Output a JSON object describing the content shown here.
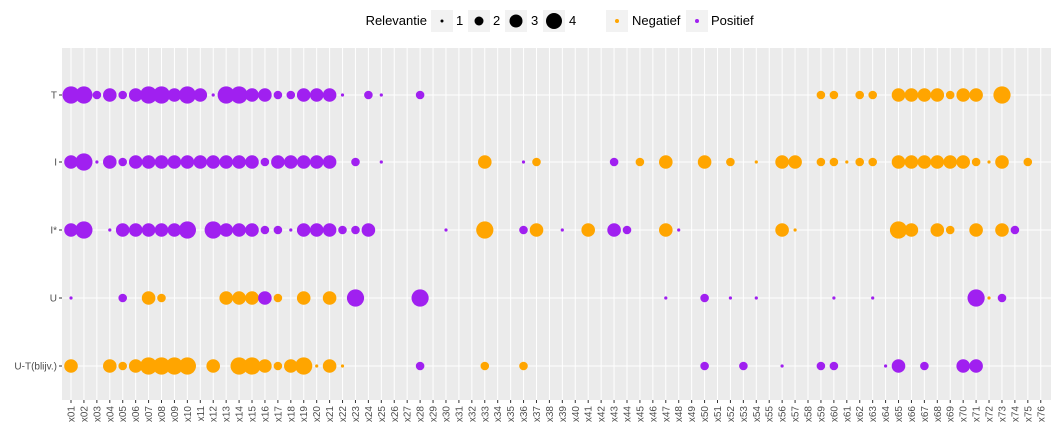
{
  "chart_data": {
    "type": "scatter",
    "title": "",
    "xlabel": "",
    "ylabel": "",
    "grid": true,
    "legend_placement": "top",
    "colors": {
      "Negatief": "#FFA500",
      "Positief": "#A020F0"
    },
    "legend": {
      "size_title": "Relevantie",
      "size_levels": [
        "1",
        "2",
        "3",
        "4"
      ],
      "color_items": [
        "Negatief",
        "Positief"
      ]
    },
    "x_categories": [
      "x01",
      "x02",
      "x03",
      "x04",
      "x05",
      "x06",
      "x07",
      "x08",
      "x09",
      "x10",
      "x11",
      "x12",
      "x13",
      "x14",
      "x15",
      "x16",
      "x17",
      "x18",
      "x19",
      "x20",
      "x21",
      "x22",
      "x23",
      "x24",
      "x25",
      "x26",
      "x27",
      "x28",
      "x29",
      "x30",
      "x31",
      "x32",
      "x33",
      "x34",
      "x35",
      "x36",
      "x37",
      "x38",
      "x39",
      "x40",
      "x41",
      "x42",
      "x43",
      "x44",
      "x45",
      "x46",
      "x47",
      "x48",
      "x49",
      "x50",
      "x51",
      "x52",
      "x53",
      "x54",
      "x55",
      "x56",
      "x57",
      "x58",
      "x59",
      "x60",
      "x61",
      "x62",
      "x63",
      "x64",
      "x65",
      "x66",
      "x67",
      "x68",
      "x69",
      "x70",
      "x71",
      "x72",
      "x73",
      "x74",
      "x75",
      "x76"
    ],
    "y_categories": [
      "T",
      "I",
      "I*",
      "U",
      "U-T(blijv.)"
    ],
    "points": {
      "T": [
        [
          "x01",
          4,
          "P"
        ],
        [
          "x02",
          4,
          "P"
        ],
        [
          "x03",
          2,
          "P"
        ],
        [
          "x04",
          3,
          "P"
        ],
        [
          "x05",
          2,
          "P"
        ],
        [
          "x06",
          3,
          "P"
        ],
        [
          "x07",
          4,
          "P"
        ],
        [
          "x08",
          4,
          "P"
        ],
        [
          "x09",
          3,
          "P"
        ],
        [
          "x10",
          4,
          "P"
        ],
        [
          "x11",
          3,
          "P"
        ],
        [
          "x12",
          1,
          "P"
        ],
        [
          "x13",
          4,
          "P"
        ],
        [
          "x14",
          4,
          "P"
        ],
        [
          "x15",
          3,
          "P"
        ],
        [
          "x16",
          3,
          "P"
        ],
        [
          "x17",
          2,
          "P"
        ],
        [
          "x18",
          2,
          "P"
        ],
        [
          "x19",
          3,
          "P"
        ],
        [
          "x20",
          3,
          "P"
        ],
        [
          "x21",
          3,
          "P"
        ],
        [
          "x22",
          1,
          "P"
        ],
        [
          "x24",
          2,
          "P"
        ],
        [
          "x25",
          1,
          "P"
        ],
        [
          "x28",
          2,
          "P"
        ],
        [
          "x59",
          2,
          "N"
        ],
        [
          "x60",
          2,
          "N"
        ],
        [
          "x62",
          2,
          "N"
        ],
        [
          "x63",
          2,
          "N"
        ],
        [
          "x65",
          3,
          "N"
        ],
        [
          "x66",
          3,
          "N"
        ],
        [
          "x67",
          3,
          "N"
        ],
        [
          "x68",
          3,
          "N"
        ],
        [
          "x69",
          2,
          "N"
        ],
        [
          "x70",
          3,
          "N"
        ],
        [
          "x71",
          3,
          "N"
        ],
        [
          "x73",
          4,
          "N"
        ]
      ],
      "I": [
        [
          "x01",
          3,
          "P"
        ],
        [
          "x02",
          4,
          "P"
        ],
        [
          "x03",
          1,
          "P"
        ],
        [
          "x04",
          3,
          "P"
        ],
        [
          "x05",
          2,
          "P"
        ],
        [
          "x06",
          3,
          "P"
        ],
        [
          "x07",
          3,
          "P"
        ],
        [
          "x08",
          3,
          "P"
        ],
        [
          "x09",
          3,
          "P"
        ],
        [
          "x10",
          3,
          "P"
        ],
        [
          "x11",
          3,
          "P"
        ],
        [
          "x12",
          3,
          "P"
        ],
        [
          "x13",
          3,
          "P"
        ],
        [
          "x14",
          3,
          "P"
        ],
        [
          "x15",
          3,
          "P"
        ],
        [
          "x16",
          2,
          "P"
        ],
        [
          "x17",
          3,
          "P"
        ],
        [
          "x18",
          3,
          "P"
        ],
        [
          "x19",
          3,
          "P"
        ],
        [
          "x20",
          3,
          "P"
        ],
        [
          "x21",
          3,
          "P"
        ],
        [
          "x23",
          2,
          "P"
        ],
        [
          "x25",
          1,
          "P"
        ],
        [
          "x33",
          3,
          "N"
        ],
        [
          "x36",
          1,
          "P"
        ],
        [
          "x37",
          2,
          "N"
        ],
        [
          "x43",
          2,
          "P"
        ],
        [
          "x45",
          2,
          "N"
        ],
        [
          "x47",
          3,
          "N"
        ],
        [
          "x50",
          3,
          "N"
        ],
        [
          "x52",
          2,
          "N"
        ],
        [
          "x54",
          1,
          "N"
        ],
        [
          "x56",
          3,
          "N"
        ],
        [
          "x57",
          3,
          "N"
        ],
        [
          "x59",
          2,
          "N"
        ],
        [
          "x60",
          2,
          "N"
        ],
        [
          "x61",
          1,
          "N"
        ],
        [
          "x62",
          2,
          "N"
        ],
        [
          "x63",
          2,
          "N"
        ],
        [
          "x65",
          3,
          "N"
        ],
        [
          "x66",
          3,
          "N"
        ],
        [
          "x67",
          3,
          "N"
        ],
        [
          "x68",
          3,
          "N"
        ],
        [
          "x69",
          3,
          "N"
        ],
        [
          "x70",
          3,
          "N"
        ],
        [
          "x71",
          2,
          "N"
        ],
        [
          "x72",
          1,
          "N"
        ],
        [
          "x73",
          3,
          "N"
        ],
        [
          "x75",
          2,
          "N"
        ]
      ],
      "I*": [
        [
          "x01",
          3,
          "P"
        ],
        [
          "x02",
          4,
          "P"
        ],
        [
          "x04",
          1,
          "P"
        ],
        [
          "x05",
          3,
          "P"
        ],
        [
          "x06",
          3,
          "P"
        ],
        [
          "x07",
          3,
          "P"
        ],
        [
          "x08",
          3,
          "P"
        ],
        [
          "x09",
          3,
          "P"
        ],
        [
          "x10",
          4,
          "P"
        ],
        [
          "x12",
          4,
          "P"
        ],
        [
          "x13",
          3,
          "P"
        ],
        [
          "x14",
          3,
          "P"
        ],
        [
          "x15",
          3,
          "P"
        ],
        [
          "x16",
          2,
          "P"
        ],
        [
          "x17",
          2,
          "P"
        ],
        [
          "x18",
          1,
          "P"
        ],
        [
          "x19",
          3,
          "P"
        ],
        [
          "x20",
          3,
          "P"
        ],
        [
          "x21",
          3,
          "P"
        ],
        [
          "x22",
          2,
          "P"
        ],
        [
          "x23",
          2,
          "P"
        ],
        [
          "x24",
          3,
          "P"
        ],
        [
          "x30",
          1,
          "P"
        ],
        [
          "x33",
          4,
          "N"
        ],
        [
          "x36",
          2,
          "P"
        ],
        [
          "x37",
          3,
          "N"
        ],
        [
          "x39",
          1,
          "P"
        ],
        [
          "x41",
          3,
          "N"
        ],
        [
          "x43",
          3,
          "P"
        ],
        [
          "x44",
          2,
          "P"
        ],
        [
          "x47",
          3,
          "N"
        ],
        [
          "x48",
          1,
          "P"
        ],
        [
          "x56",
          3,
          "N"
        ],
        [
          "x57",
          1,
          "N"
        ],
        [
          "x65",
          4,
          "N"
        ],
        [
          "x66",
          3,
          "N"
        ],
        [
          "x68",
          3,
          "N"
        ],
        [
          "x69",
          2,
          "N"
        ],
        [
          "x71",
          3,
          "N"
        ],
        [
          "x73",
          3,
          "N"
        ],
        [
          "x74",
          2,
          "P"
        ]
      ],
      "U": [
        [
          "x01",
          1,
          "P"
        ],
        [
          "x05",
          2,
          "P"
        ],
        [
          "x07",
          3,
          "N"
        ],
        [
          "x08",
          2,
          "N"
        ],
        [
          "x13",
          3,
          "N"
        ],
        [
          "x14",
          3,
          "N"
        ],
        [
          "x15",
          3,
          "N"
        ],
        [
          "x16",
          3,
          "P"
        ],
        [
          "x17",
          2,
          "N"
        ],
        [
          "x19",
          3,
          "N"
        ],
        [
          "x21",
          3,
          "N"
        ],
        [
          "x23",
          4,
          "P"
        ],
        [
          "x28",
          4,
          "P"
        ],
        [
          "x47",
          1,
          "P"
        ],
        [
          "x50",
          2,
          "P"
        ],
        [
          "x52",
          1,
          "P"
        ],
        [
          "x54",
          1,
          "P"
        ],
        [
          "x60",
          1,
          "P"
        ],
        [
          "x63",
          1,
          "P"
        ],
        [
          "x71",
          4,
          "P"
        ],
        [
          "x72",
          1,
          "N"
        ],
        [
          "x73",
          2,
          "P"
        ]
      ],
      "U-T(blijv.)": [
        [
          "x01",
          3,
          "N"
        ],
        [
          "x04",
          3,
          "N"
        ],
        [
          "x05",
          2,
          "N"
        ],
        [
          "x06",
          3,
          "N"
        ],
        [
          "x07",
          4,
          "N"
        ],
        [
          "x08",
          4,
          "N"
        ],
        [
          "x09",
          4,
          "N"
        ],
        [
          "x10",
          4,
          "N"
        ],
        [
          "x12",
          3,
          "N"
        ],
        [
          "x14",
          4,
          "N"
        ],
        [
          "x15",
          4,
          "N"
        ],
        [
          "x16",
          3,
          "N"
        ],
        [
          "x17",
          2,
          "N"
        ],
        [
          "x18",
          3,
          "N"
        ],
        [
          "x19",
          4,
          "N"
        ],
        [
          "x20",
          1,
          "N"
        ],
        [
          "x21",
          3,
          "N"
        ],
        [
          "x22",
          1,
          "N"
        ],
        [
          "x28",
          2,
          "P"
        ],
        [
          "x33",
          2,
          "N"
        ],
        [
          "x36",
          2,
          "N"
        ],
        [
          "x50",
          2,
          "P"
        ],
        [
          "x53",
          2,
          "P"
        ],
        [
          "x56",
          1,
          "P"
        ],
        [
          "x59",
          2,
          "P"
        ],
        [
          "x60",
          2,
          "P"
        ],
        [
          "x64",
          1,
          "P"
        ],
        [
          "x65",
          3,
          "P"
        ],
        [
          "x67",
          2,
          "P"
        ],
        [
          "x70",
          3,
          "P"
        ],
        [
          "x71",
          3,
          "P"
        ]
      ]
    }
  }
}
